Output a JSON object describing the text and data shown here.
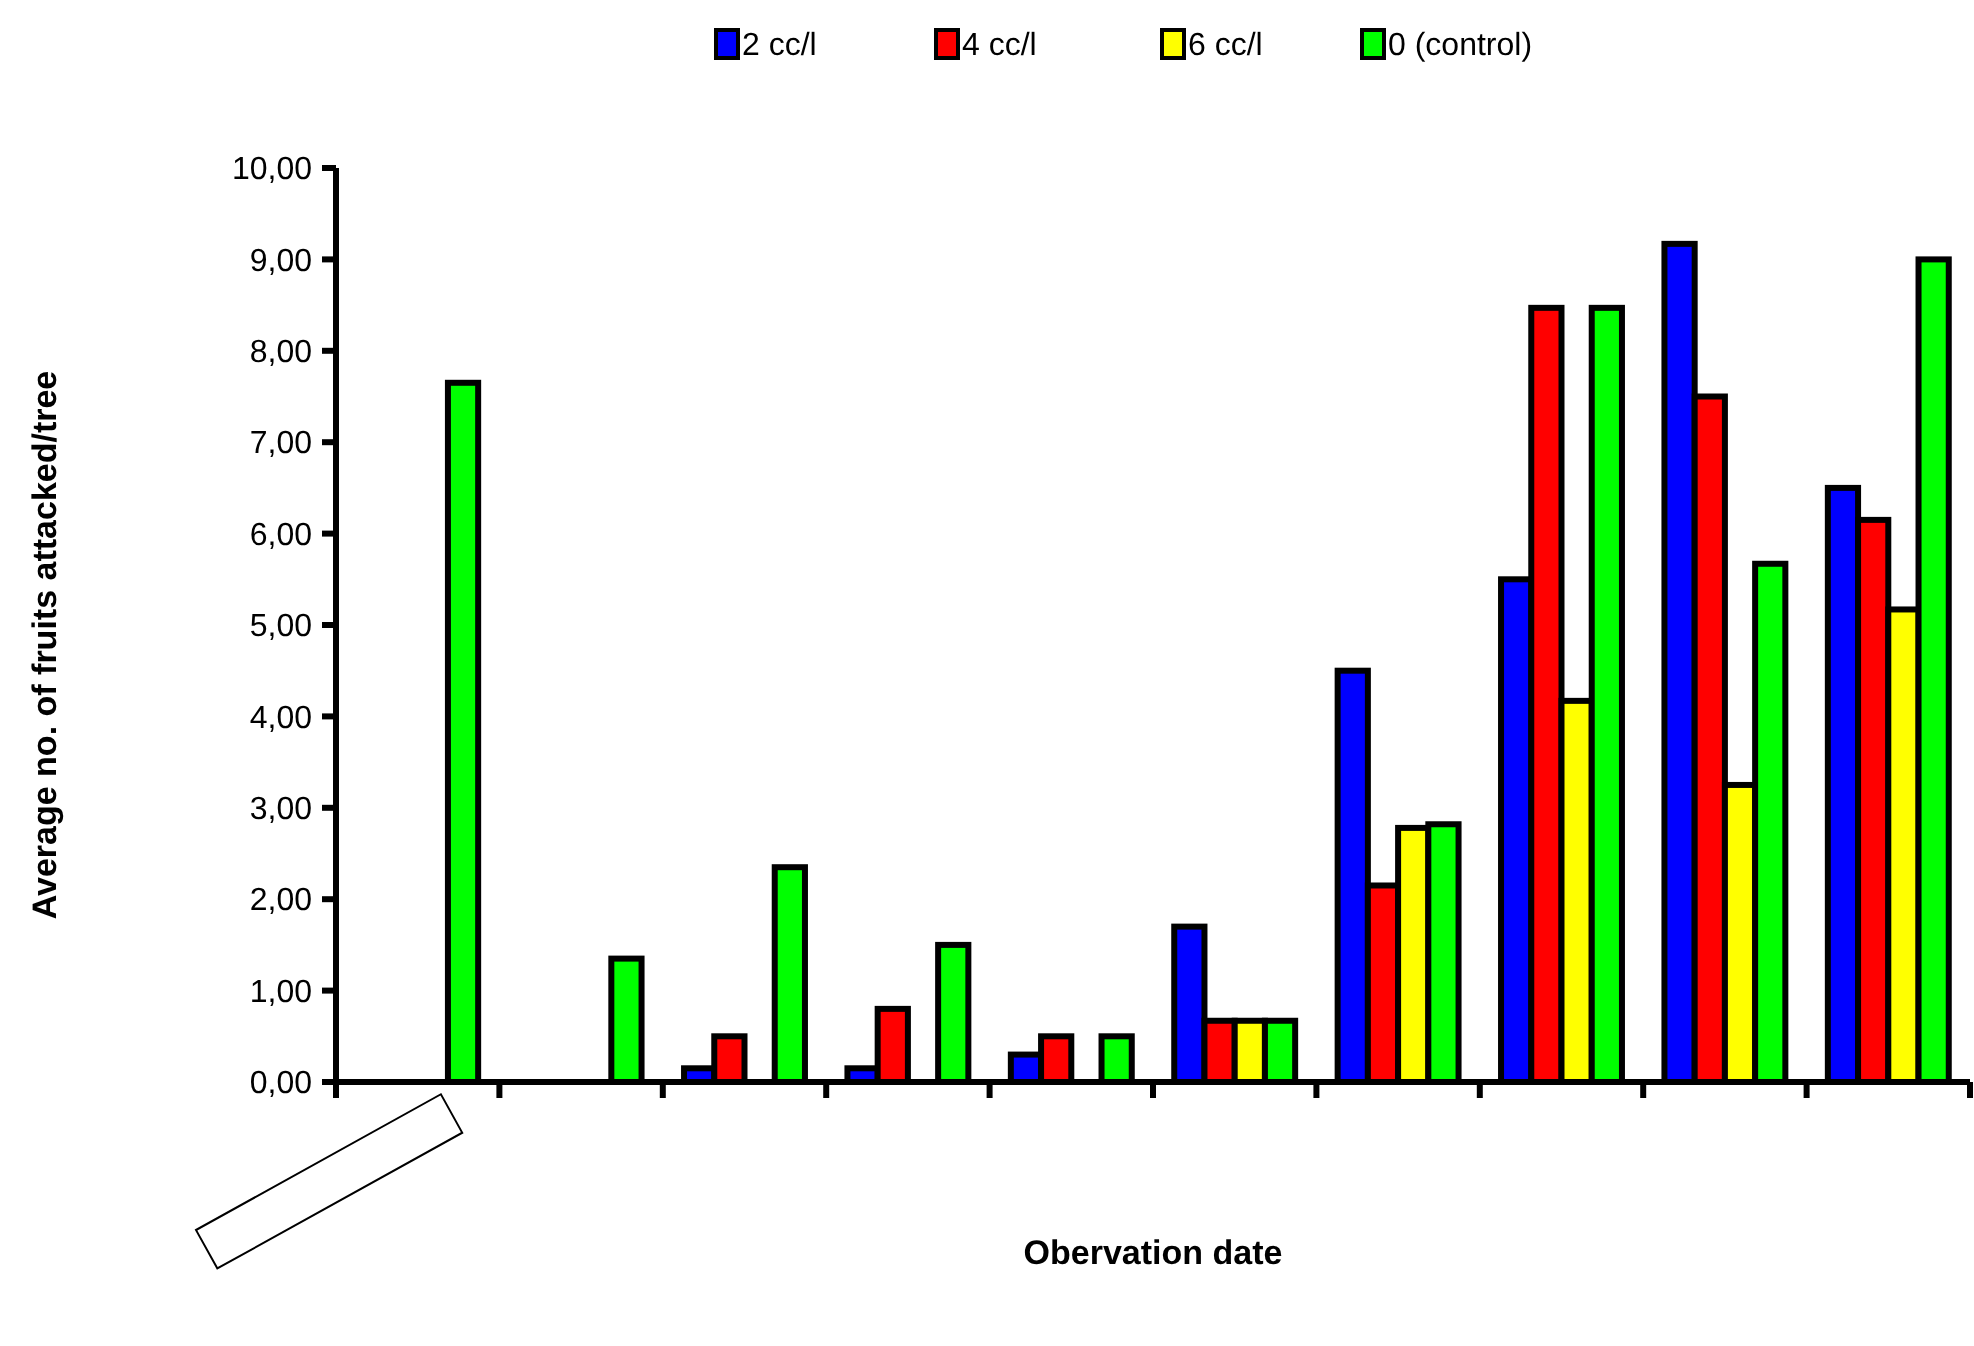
{
  "chart_data": {
    "type": "bar",
    "xlabel": "Obervation date",
    "ylabel": "Average no. of fruits attacked/tree",
    "categories": [
      null,
      null,
      null,
      null,
      null,
      null,
      null,
      null,
      null,
      null
    ],
    "series": [
      {
        "name": "2 cc/l",
        "color": "#0000ff",
        "values": [
          null,
          null,
          0.15,
          0.15,
          0.3,
          1.7,
          4.5,
          5.5,
          9.17,
          6.5
        ]
      },
      {
        "name": "4 cc/l",
        "color": "#ff0000",
        "values": [
          null,
          null,
          0.5,
          0.8,
          0.5,
          0.67,
          2.15,
          8.47,
          7.5,
          6.15
        ]
      },
      {
        "name": "6 cc/l",
        "color": "#ffff00",
        "values": [
          null,
          null,
          null,
          null,
          null,
          0.67,
          2.78,
          4.17,
          3.25,
          5.17
        ]
      },
      {
        "name": "0 (control)",
        "color": "#00ff00",
        "values": [
          7.65,
          1.35,
          2.35,
          1.5,
          0.5,
          0.67,
          2.82,
          8.47,
          5.67,
          9.0
        ]
      }
    ],
    "ylim": [
      0,
      10
    ],
    "yticks": [
      {
        "value": 0,
        "label": "0,00"
      },
      {
        "value": 1,
        "label": "1,00"
      },
      {
        "value": 2,
        "label": "2,00"
      },
      {
        "value": 3,
        "label": "3,00"
      },
      {
        "value": 4,
        "label": "4,00"
      },
      {
        "value": 5,
        "label": "5,00"
      },
      {
        "value": 6,
        "label": "6,00"
      },
      {
        "value": 7,
        "label": "7,00"
      },
      {
        "value": 8,
        "label": "8,00"
      },
      {
        "value": 9,
        "label": "9,00"
      },
      {
        "value": 10,
        "label": "10,00"
      }
    ],
    "grid": false,
    "legend": "top"
  }
}
